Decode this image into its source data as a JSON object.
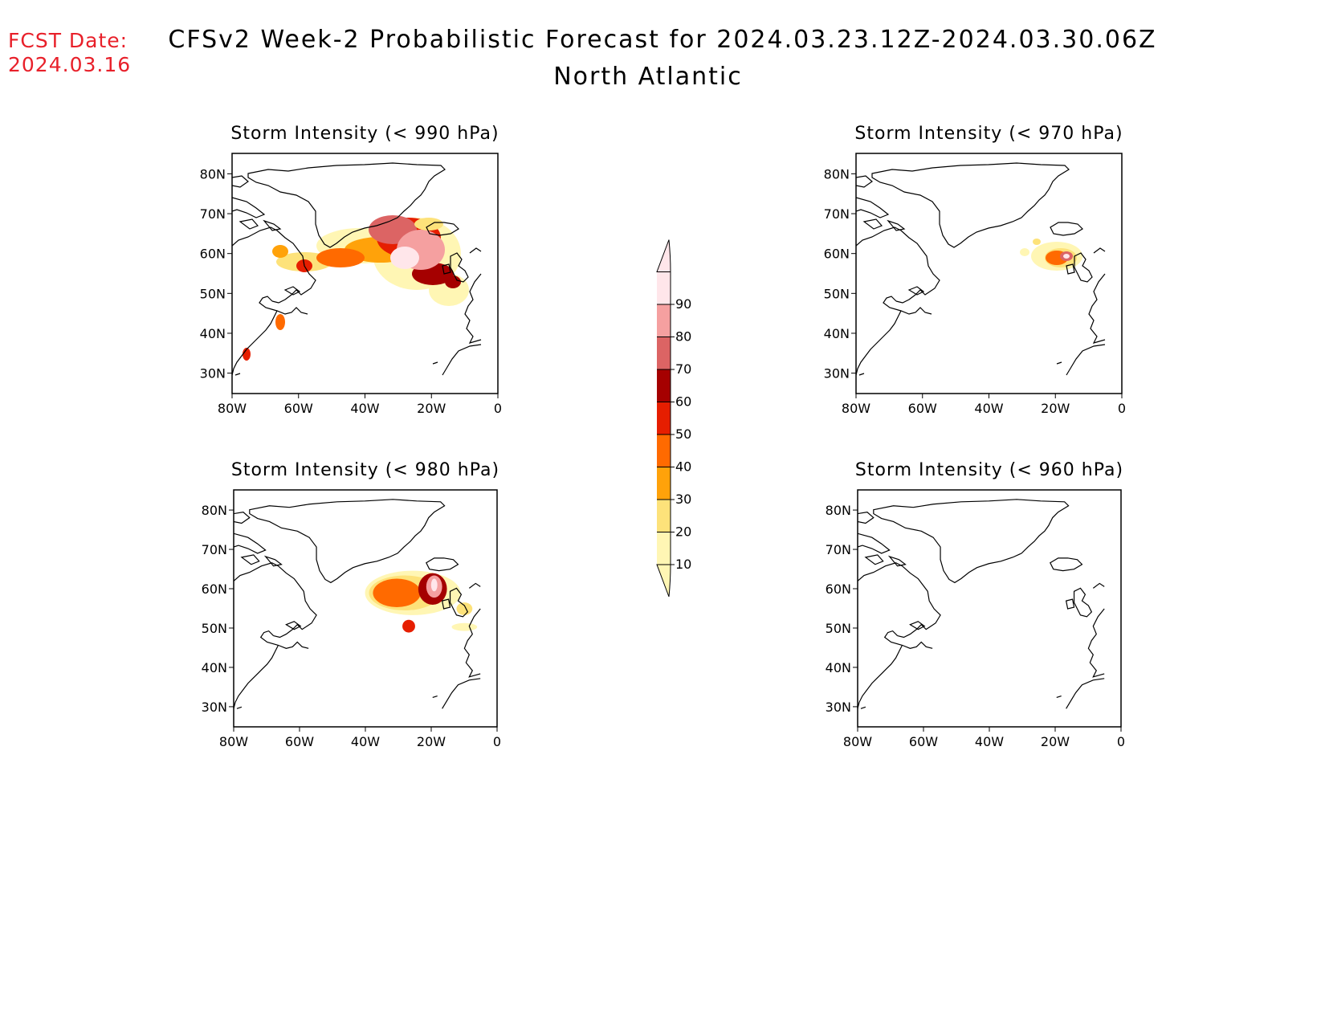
{
  "header": {
    "fcst_label": "FCST Date:",
    "fcst_date": "2024.03.16",
    "title": "CFSv2 Week-2 Probabilistic Forecast for 2024.03.23.12Z-2024.03.30.06Z",
    "subtitle": "North Atlantic"
  },
  "panels": [
    {
      "title": "Storm Intensity (< 990 hPa)",
      "threshold_hpa": 990
    },
    {
      "title": "Storm Intensity (< 970 hPa)",
      "threshold_hpa": 970
    },
    {
      "title": "Storm Intensity (< 980 hPa)",
      "threshold_hpa": 980
    },
    {
      "title": "Storm Intensity (< 960 hPa)",
      "threshold_hpa": 960
    }
  ],
  "axes": {
    "lat_labels": [
      "80N",
      "70N",
      "60N",
      "50N",
      "40N",
      "30N"
    ],
    "lon_labels": [
      "80W",
      "60W",
      "40W",
      "20W",
      "0"
    ]
  },
  "colorbar": {
    "levels": [
      "10",
      "20",
      "30",
      "40",
      "50",
      "60",
      "70",
      "80",
      "90"
    ],
    "colors": [
      "#fff6b4",
      "#fde27a",
      "#ffa20a",
      "#ff6a00",
      "#e61e00",
      "#a50000",
      "#dc6464",
      "#f5a0a0",
      "#ffe6ea"
    ]
  }
}
